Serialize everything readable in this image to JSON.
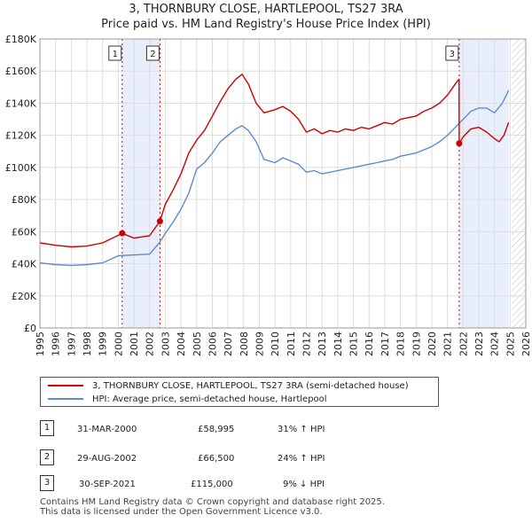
{
  "title_line1": "3, THORNBURY CLOSE, HARTLEPOOL, TS27 3RA",
  "title_line2": "Price paid vs. HM Land Registry's House Price Index (HPI)",
  "colors": {
    "property": "#cc0000",
    "hpi": "#5b8ccc",
    "highlight": "#e8eefb",
    "hatch": "#c8c8c8"
  },
  "chart_data": {
    "type": "line",
    "xlim": [
      1995,
      2026
    ],
    "ylim": [
      0,
      180000
    ],
    "yticks": [
      0,
      20000,
      40000,
      60000,
      80000,
      100000,
      120000,
      140000,
      160000,
      180000
    ],
    "ytick_labels": [
      "£0",
      "£20K",
      "£40K",
      "£60K",
      "£80K",
      "£100K",
      "£120K",
      "£140K",
      "£160K",
      "£180K"
    ],
    "xticks": [
      1995,
      1996,
      1997,
      1998,
      1999,
      2000,
      2001,
      2002,
      2003,
      2004,
      2005,
      2006,
      2007,
      2008,
      2009,
      2010,
      2011,
      2012,
      2013,
      2014,
      2015,
      2016,
      2017,
      2018,
      2019,
      2020,
      2021,
      2022,
      2023,
      2024,
      2025,
      2026
    ],
    "xtick_labels": [
      "1995",
      "1996",
      "1997",
      "1998",
      "1999",
      "2000",
      "2001",
      "2002",
      "2003",
      "2004",
      "2005",
      "2006",
      "2007",
      "2008",
      "2009",
      "2010",
      "2011",
      "2012",
      "2013",
      "2014",
      "2015",
      "2016",
      "2017",
      "2018",
      "2019",
      "2020",
      "2021",
      "2022",
      "2023",
      "2024",
      "2025",
      "2026"
    ],
    "shaded_ranges": [
      [
        2000.25,
        2002.66
      ],
      [
        2021.75,
        2024.9
      ]
    ],
    "forecast_start": 2025.1,
    "series": [
      {
        "name": "3, THORNBURY CLOSE, HARTLEPOOL, TS27 3RA (semi-detached house)",
        "x": [
          1995.0,
          1996.0,
          1997.0,
          1998.0,
          1999.0,
          2000.25,
          2001.0,
          2002.0,
          2002.66,
          2003.0,
          2003.5,
          2004.0,
          2004.5,
          2005.0,
          2005.5,
          2006.0,
          2006.5,
          2007.0,
          2007.5,
          2007.9,
          2008.3,
          2008.8,
          2009.3,
          2010.0,
          2010.5,
          2011.0,
          2011.5,
          2012.0,
          2012.5,
          2013.0,
          2013.5,
          2014.0,
          2014.5,
          2015.0,
          2015.5,
          2016.0,
          2016.5,
          2017.0,
          2017.5,
          2018.0,
          2018.5,
          2019.0,
          2019.5,
          2020.0,
          2020.5,
          2021.0,
          2021.5,
          2021.74,
          2021.75,
          2022.0,
          2022.5,
          2023.0,
          2023.5,
          2024.0,
          2024.3,
          2024.6,
          2024.9
        ],
        "y": [
          53000,
          51500,
          50500,
          51000,
          53000,
          58995,
          56000,
          57500,
          66500,
          77000,
          86000,
          96000,
          109000,
          117000,
          123000,
          132000,
          141000,
          149000,
          155000,
          158000,
          152000,
          140000,
          134000,
          136000,
          138000,
          135000,
          130000,
          122000,
          124000,
          121000,
          123000,
          122000,
          124000,
          123000,
          125000,
          124000,
          126000,
          128000,
          127000,
          130000,
          131000,
          132000,
          135000,
          137000,
          140000,
          145000,
          152000,
          155000,
          115000,
          119000,
          124000,
          125000,
          122000,
          118000,
          116000,
          120000,
          128000
        ]
      },
      {
        "name": "HPI: Average price, semi-detached house, Hartlepool",
        "x": [
          1995.0,
          1996.0,
          1997.0,
          1998.0,
          1999.0,
          2000.0,
          2001.0,
          2002.0,
          2002.66,
          2003.0,
          2003.5,
          2004.0,
          2004.5,
          2005.0,
          2005.5,
          2006.0,
          2006.5,
          2007.0,
          2007.5,
          2007.9,
          2008.3,
          2008.8,
          2009.3,
          2010.0,
          2010.5,
          2011.0,
          2011.5,
          2012.0,
          2012.5,
          2013.0,
          2013.5,
          2014.0,
          2014.5,
          2015.0,
          2015.5,
          2016.0,
          2016.5,
          2017.0,
          2017.5,
          2018.0,
          2018.5,
          2019.0,
          2019.5,
          2020.0,
          2020.5,
          2021.0,
          2021.5,
          2022.0,
          2022.5,
          2023.0,
          2023.5,
          2024.0,
          2024.5,
          2024.9
        ],
        "y": [
          40500,
          39500,
          39000,
          39500,
          40500,
          45000,
          45500,
          46000,
          53500,
          59000,
          66000,
          74000,
          84000,
          99000,
          103000,
          109000,
          116000,
          120000,
          124000,
          126000,
          123000,
          116000,
          105000,
          103000,
          106000,
          104000,
          102000,
          97000,
          98000,
          96000,
          97000,
          98000,
          99000,
          100000,
          101000,
          102000,
          103000,
          104000,
          105000,
          107000,
          108000,
          109000,
          111000,
          113000,
          116000,
          120000,
          125000,
          130000,
          135000,
          137000,
          137000,
          134000,
          140000,
          148000
        ]
      }
    ],
    "transactions": [
      {
        "label": "1",
        "x": 2000.25,
        "y": 58995,
        "date": "31-MAR-2000",
        "price": "£58,995",
        "hpi": "31% ↑ HPI"
      },
      {
        "label": "2",
        "x": 2002.66,
        "y": 66500,
        "date": "29-AUG-2002",
        "price": "£66,500",
        "hpi": "24% ↑ HPI"
      },
      {
        "label": "3",
        "x": 2021.75,
        "y": 115000,
        "date": "30-SEP-2021",
        "price": "£115,000",
        "hpi": "9% ↓ HPI"
      }
    ]
  },
  "legend": {
    "property": "3, THORNBURY CLOSE, HARTLEPOOL, TS27 3RA (semi-detached house)",
    "hpi": "HPI: Average price, semi-detached house, Hartlepool"
  },
  "footer": {
    "line1": "Contains HM Land Registry data © Crown copyright and database right 2025.",
    "line2": "This data is licensed under the Open Government Licence v3.0."
  }
}
